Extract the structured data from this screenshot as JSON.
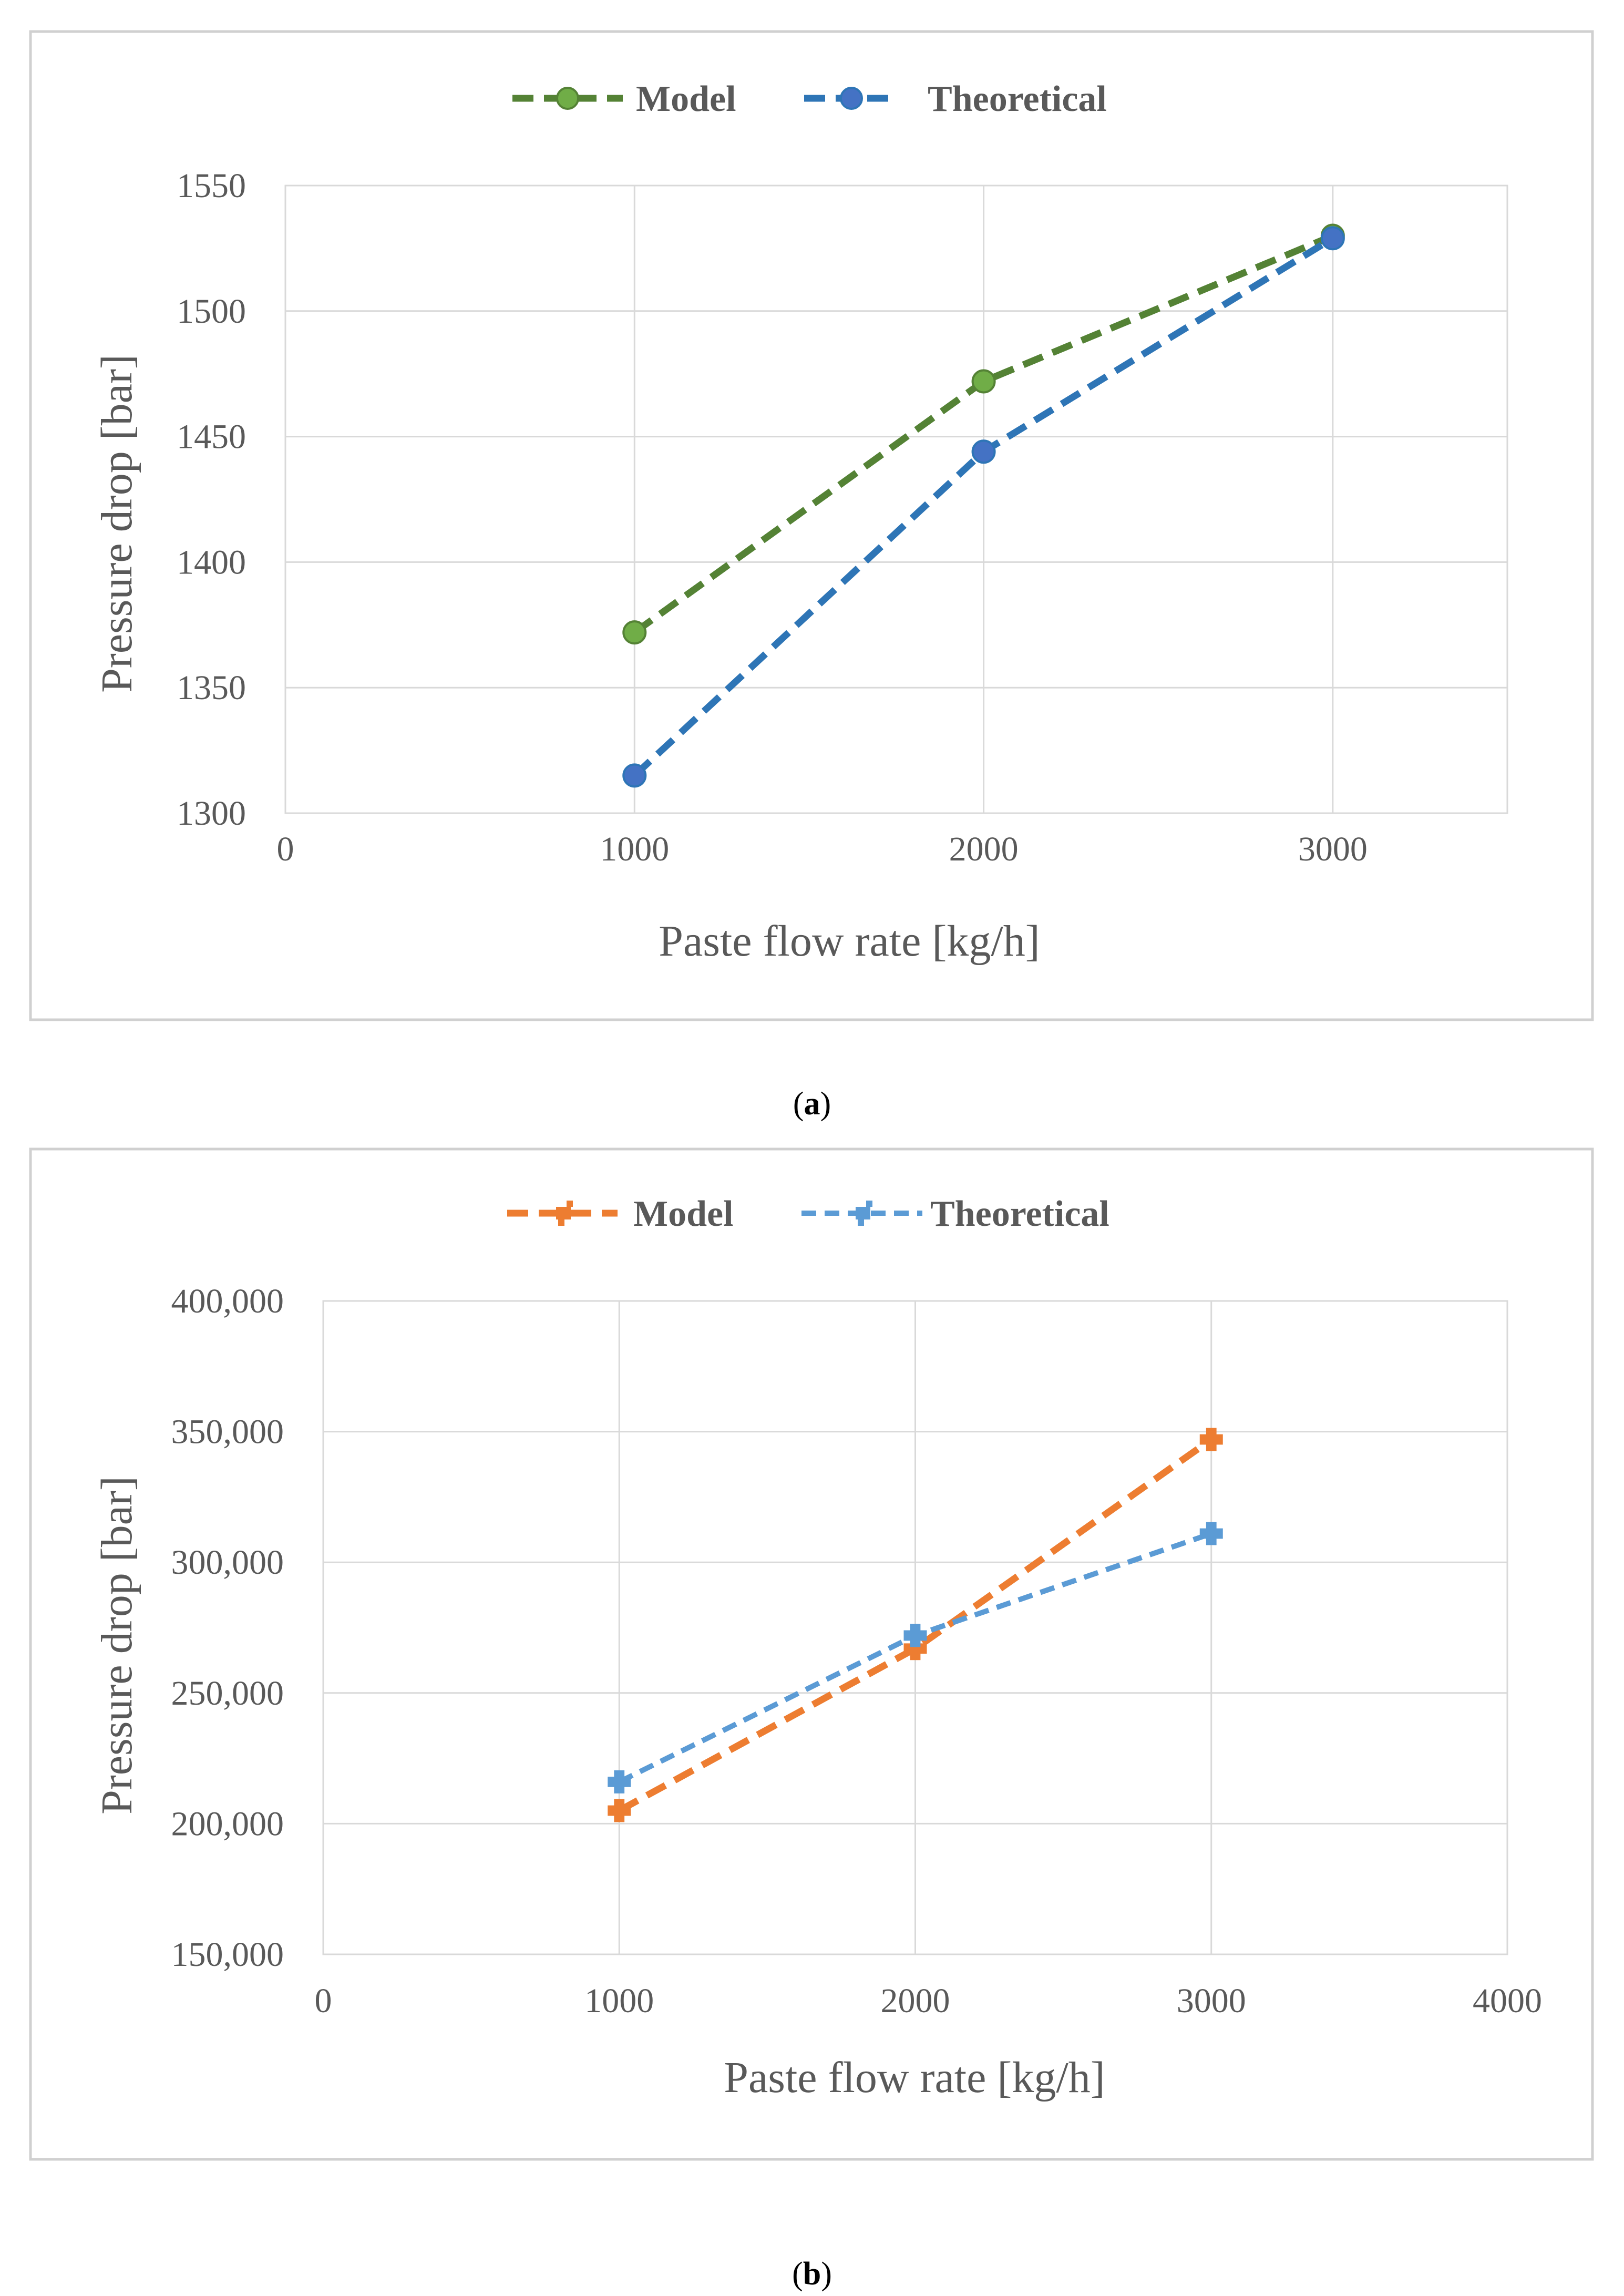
{
  "chart_data": [
    {
      "type": "line",
      "panel": "a",
      "caption_letter": "a",
      "title": "",
      "xlabel": "Paste flow rate [kg/h]",
      "ylabel": "Pressure drop [bar]",
      "xlim": [
        0,
        3500
      ],
      "ylim": [
        1300,
        1550
      ],
      "xticks": [
        0,
        1000,
        2000,
        3000
      ],
      "xtick_labels": [
        "0",
        "1000",
        "2000",
        "3000"
      ],
      "yticks": [
        1300,
        1350,
        1400,
        1450,
        1500,
        1550
      ],
      "ytick_labels": [
        "1300",
        "1350",
        "1400",
        "1450",
        "1500",
        "1550"
      ],
      "grid": true,
      "legend_position": "top-center",
      "x": [
        1000,
        2000,
        3000
      ],
      "series": [
        {
          "name": "Model",
          "color": "#548235",
          "marker_color": "#70ad47",
          "values": [
            1372,
            1472,
            1530
          ]
        },
        {
          "name": "Theoretical",
          "color": "#2e75b6",
          "marker_color": "#4472c4",
          "values": [
            1315,
            1444,
            1529
          ]
        }
      ]
    },
    {
      "type": "line",
      "panel": "b",
      "caption_letter": "b",
      "title": "",
      "xlabel": "Paste flow rate [kg/h]",
      "ylabel": "Pressure drop [bar]",
      "xlim": [
        0,
        4000
      ],
      "ylim": [
        150000,
        400000
      ],
      "xticks": [
        0,
        1000,
        2000,
        3000,
        4000
      ],
      "xtick_labels": [
        "0",
        "1000",
        "2000",
        "3000",
        "4000"
      ],
      "yticks": [
        150000,
        200000,
        250000,
        300000,
        350000,
        400000
      ],
      "ytick_labels": [
        "150,000",
        "200,000",
        "250,000",
        "300,000",
        "350,000",
        "400,000"
      ],
      "grid": true,
      "legend_position": "top-center",
      "x": [
        1000,
        2000,
        3000
      ],
      "series": [
        {
          "name": "Model",
          "color": "#ed7d31",
          "marker_color": "#ed7d31",
          "values": [
            205000,
            267000,
            347000
          ]
        },
        {
          "name": "Theoretical",
          "color": "#5b9bd5",
          "marker_color": "#5b9bd5",
          "values": [
            216000,
            272000,
            311000
          ]
        }
      ]
    }
  ]
}
